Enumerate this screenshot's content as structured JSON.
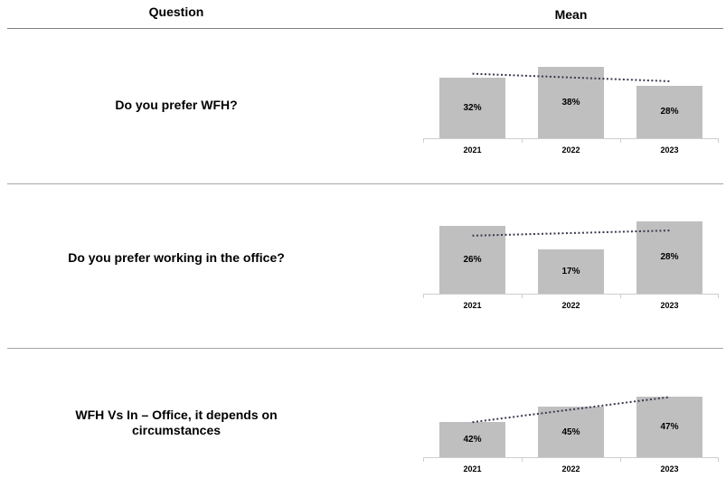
{
  "header": {
    "question": "Question",
    "mean": "Mean"
  },
  "colors": {
    "bar_fill": "#bfbfbf",
    "axis": "#d0cece",
    "trendline": "#3a3a52",
    "divider": "#a6a6a6",
    "header_rule": "#808080",
    "text": "#000000"
  },
  "chart_data": [
    {
      "type": "bar",
      "question": "Do you prefer WFH?",
      "categories": [
        "2021",
        "2022",
        "2023"
      ],
      "values": [
        32,
        38,
        28
      ],
      "value_labels": [
        "32%",
        "38%",
        "28%"
      ],
      "unit": "%",
      "trendline": "linear-dotted",
      "ylim": [
        0,
        45
      ],
      "grid": false,
      "legend": false
    },
    {
      "type": "bar",
      "question": "Do you prefer working in the office?",
      "categories": [
        "2021",
        "2022",
        "2023"
      ],
      "values": [
        26,
        17,
        28
      ],
      "value_labels": [
        "26%",
        "17%",
        "28%"
      ],
      "unit": "%",
      "trendline": "linear-dotted",
      "ylim": [
        0,
        32
      ],
      "grid": false,
      "legend": false
    },
    {
      "type": "bar",
      "question": "WFH Vs In – Office, it depends on circumstances",
      "categories": [
        "2021",
        "2022",
        "2023"
      ],
      "values": [
        42,
        45,
        47
      ],
      "value_labels": [
        "42%",
        "45%",
        "47%"
      ],
      "unit": "%",
      "trendline": "linear-dotted",
      "ylim": [
        35,
        53
      ],
      "grid": false,
      "legend": false
    }
  ]
}
